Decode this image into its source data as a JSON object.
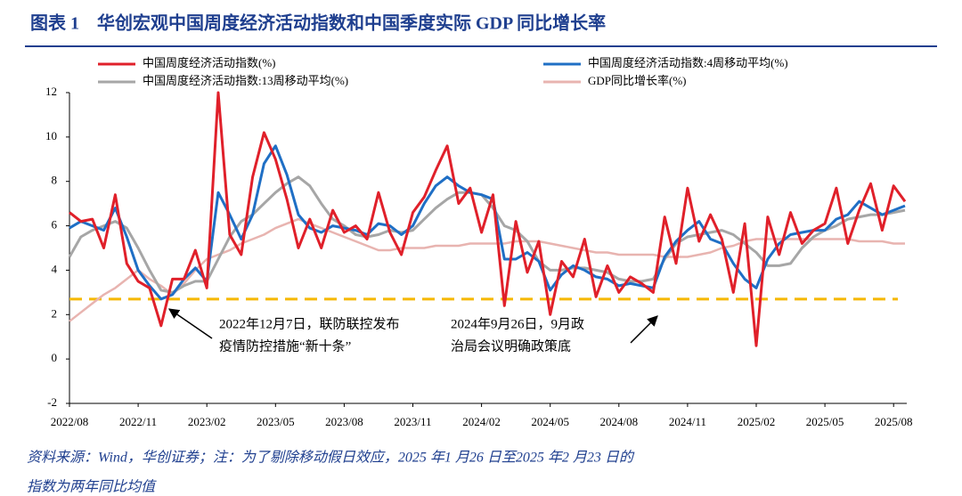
{
  "header": {
    "title": "图表 1　华创宏观中国周度经济活动指数和中国季度实际 GDP 同比增长率"
  },
  "chart_data": {
    "type": "line",
    "categories": [
      "2022/08",
      null,
      null,
      null,
      null,
      null,
      "2022/11",
      null,
      null,
      null,
      null,
      null,
      "2023/02",
      null,
      null,
      null,
      null,
      null,
      "2023/05",
      null,
      null,
      null,
      null,
      null,
      "2023/08",
      null,
      null,
      null,
      null,
      null,
      "2023/11",
      null,
      null,
      null,
      null,
      null,
      "2024/02",
      null,
      null,
      null,
      null,
      null,
      "2024/05",
      null,
      null,
      null,
      null,
      null,
      "2024/08",
      null,
      null,
      null,
      null,
      null,
      "2024/11",
      null,
      null,
      null,
      null,
      null,
      "2025/02",
      null,
      null,
      null,
      null,
      null,
      "2025/05",
      null,
      null,
      null,
      null,
      null,
      "2025/08",
      null
    ],
    "series": [
      {
        "name": "中国周度经济活动指数(%)",
        "color": "#e0202a",
        "width": 3,
        "values": [
          6.6,
          6.2,
          6.3,
          5.0,
          7.4,
          4.3,
          3.5,
          3.2,
          1.5,
          3.6,
          3.6,
          4.9,
          3.2,
          12.0,
          5.6,
          4.7,
          8.2,
          10.2,
          9.0,
          7.2,
          5.0,
          6.3,
          5.0,
          6.7,
          5.7,
          6.0,
          5.4,
          7.5,
          5.7,
          4.7,
          6.6,
          7.3,
          8.5,
          9.6,
          7.0,
          7.7,
          5.7,
          7.4,
          2.4,
          6.2,
          3.9,
          5.3,
          2.0,
          4.4,
          3.7,
          5.4,
          2.8,
          4.2,
          3.0,
          3.7,
          3.4,
          3.0,
          6.4,
          4.3,
          7.7,
          5.3,
          6.5,
          5.4,
          3.0,
          6.1,
          0.6,
          6.4,
          4.7,
          6.6,
          5.2,
          5.8,
          6.1,
          7.7,
          5.2,
          6.7,
          7.9,
          5.8,
          7.8,
          7.1
        ]
      },
      {
        "name": "中国周度经济活动指数:4周移动平均(%)",
        "color": "#1f6fc5",
        "width": 3,
        "values": [
          5.9,
          6.2,
          6.0,
          5.8,
          6.8,
          5.5,
          4.0,
          3.3,
          2.7,
          2.9,
          3.6,
          4.1,
          3.5,
          7.5,
          6.5,
          5.4,
          6.5,
          8.8,
          9.6,
          8.3,
          6.5,
          5.9,
          5.7,
          6.0,
          5.9,
          5.8,
          5.6,
          6.1,
          6.0,
          5.6,
          6.0,
          7.0,
          7.8,
          8.2,
          7.8,
          7.5,
          7.4,
          7.2,
          4.5,
          4.5,
          4.8,
          4.4,
          3.1,
          3.8,
          4.2,
          4.0,
          3.7,
          3.6,
          3.3,
          3.4,
          3.3,
          3.2,
          4.6,
          5.3,
          5.8,
          6.2,
          5.4,
          5.2,
          4.3,
          3.6,
          3.2,
          4.5,
          5.2,
          5.6,
          5.7,
          5.8,
          5.8,
          6.3,
          6.5,
          7.1,
          6.8,
          6.5,
          6.7,
          6.9
        ]
      },
      {
        "name": "中国周度经济活动指数:13周移动平均(%)",
        "color": "#a6a6a6",
        "width": 3,
        "values": [
          4.6,
          5.5,
          5.8,
          6.0,
          6.2,
          5.9,
          5.0,
          4.0,
          3.1,
          3.0,
          3.3,
          3.5,
          3.5,
          4.5,
          5.5,
          6.2,
          6.5,
          7.0,
          7.5,
          7.9,
          8.2,
          7.8,
          7.0,
          6.3,
          6.0,
          5.6,
          5.5,
          5.6,
          5.8,
          5.7,
          5.8,
          6.3,
          6.8,
          7.2,
          7.5,
          7.5,
          7.4,
          6.8,
          6.0,
          5.8,
          5.3,
          4.4,
          4.0,
          4.0,
          4.1,
          4.1,
          4.0,
          3.9,
          3.6,
          3.5,
          3.5,
          3.6,
          4.5,
          5.2,
          5.5,
          5.6,
          5.7,
          5.8,
          5.6,
          5.2,
          4.8,
          4.2,
          4.2,
          4.3,
          5.0,
          5.5,
          5.8,
          6.0,
          6.3,
          6.4,
          6.5,
          6.5,
          6.6,
          6.7
        ]
      },
      {
        "name": "GDP同比增长率(%)",
        "color": "#e8b4b0",
        "width": 2.5,
        "values": [
          1.7,
          2.1,
          2.5,
          2.9,
          3.2,
          3.6,
          4.0,
          3.6,
          3.3,
          2.9,
          3.4,
          4.0,
          4.5,
          4.7,
          4.9,
          5.2,
          5.4,
          5.6,
          5.9,
          6.1,
          6.3,
          6.1,
          5.9,
          5.7,
          5.5,
          5.3,
          5.1,
          4.9,
          4.9,
          5.0,
          5.0,
          5.0,
          5.1,
          5.1,
          5.1,
          5.2,
          5.2,
          5.2,
          5.2,
          5.3,
          5.3,
          5.3,
          5.2,
          5.1,
          5.0,
          4.9,
          4.8,
          4.8,
          4.7,
          4.7,
          4.7,
          4.7,
          4.6,
          4.6,
          4.6,
          4.7,
          4.8,
          5.0,
          5.1,
          5.3,
          5.4,
          5.4,
          5.4,
          5.4,
          5.4,
          5.4,
          5.4,
          5.4,
          5.4,
          5.3,
          5.3,
          5.3,
          5.2,
          5.2
        ]
      }
    ],
    "reference_line": {
      "value": 2.7,
      "color": "#f5b800"
    },
    "ylim": [
      -2,
      12
    ],
    "yticks": [
      -2,
      0,
      2,
      4,
      6,
      8,
      10,
      12
    ],
    "annotations": [
      {
        "lines": [
          "2022年12月7日，联防联控发布",
          "疫情防控措施“新十条”"
        ]
      },
      {
        "lines": [
          "2024年9月26日，9月政",
          "治局会议明确政策底"
        ]
      }
    ]
  },
  "footer": {
    "lines": [
      "资料来源：Wind，华创证券；注：为了剔除移动假日效应，2025 年1 月26 日至2025 年2 月23 日的",
      "指数为两年同比均值"
    ]
  }
}
